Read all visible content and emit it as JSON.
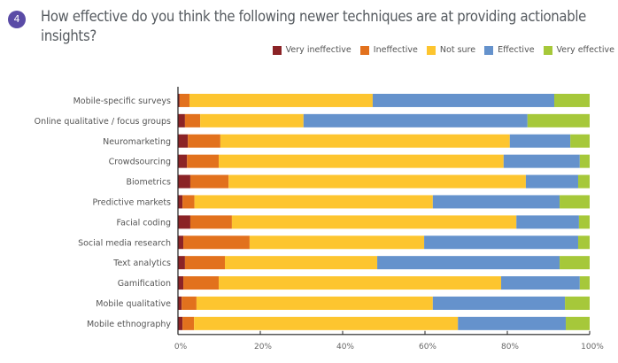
{
  "question_number": "4",
  "chart_data": {
    "type": "bar",
    "orientation": "horizontal",
    "stacked": true,
    "title": "How effective do you think the following newer techniques are at providing actionable insights?",
    "xlabel": "",
    "ylabel": "",
    "xlim": [
      0,
      100
    ],
    "x_ticks": [
      "0%",
      "20%",
      "40%",
      "60%",
      "80%",
      "100%"
    ],
    "legend_position": "top-right",
    "grid": false,
    "categories": [
      "Mobile-specific surveys",
      "Online qualitative / focus groups",
      "Neuromarketing",
      "Crowdsourcing",
      "Biometrics",
      "Predictive markets",
      "Facial coding",
      "Social media research",
      "Text analytics",
      "Gamification",
      "Mobile qualitative",
      "Mobile ethnography"
    ],
    "series": [
      {
        "name": "Very ineffective",
        "color": "#8b2326",
        "values": [
          0.4,
          1.7,
          2.4,
          2.2,
          3.0,
          1.1,
          3.0,
          1.3,
          1.7,
          1.3,
          0.9,
          1.1
        ]
      },
      {
        "name": "Ineffective",
        "color": "#e2711d",
        "values": [
          2.4,
          3.7,
          7.9,
          7.7,
          9.3,
          2.9,
          10.1,
          16.1,
          9.7,
          8.6,
          3.6,
          2.8
        ]
      },
      {
        "name": "Not sure",
        "color": "#fdc52f",
        "values": [
          44.5,
          25.1,
          70.3,
          69.2,
          72.2,
          57.9,
          69.1,
          42.4,
          37.0,
          68.6,
          57.4,
          64.1
        ]
      },
      {
        "name": "Effective",
        "color": "#6592cc",
        "values": [
          44.1,
          54.4,
          14.7,
          18.5,
          12.7,
          30.8,
          15.2,
          37.4,
          44.3,
          19.1,
          32.1,
          26.2
        ]
      },
      {
        "name": "Very effective",
        "color": "#a6c83a",
        "values": [
          8.6,
          15.1,
          4.7,
          2.4,
          2.8,
          7.3,
          2.6,
          2.8,
          7.3,
          2.4,
          6.0,
          5.8
        ]
      }
    ]
  }
}
